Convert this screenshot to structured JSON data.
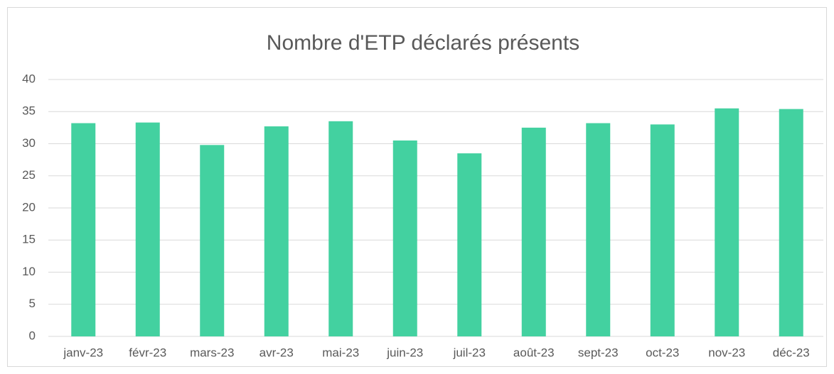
{
  "chart_data": {
    "type": "bar",
    "title": "Nombre d'ETP déclarés présents",
    "categories": [
      "janv-23",
      "févr-23",
      "mars-23",
      "avr-23",
      "mai-23",
      "juin-23",
      "juil-23",
      "août-23",
      "sept-23",
      "oct-23",
      "nov-23",
      "déc-23"
    ],
    "values": [
      33.2,
      33.3,
      29.8,
      32.7,
      33.5,
      30.5,
      28.5,
      32.5,
      33.2,
      33.0,
      35.5,
      35.4
    ],
    "color": "#43d1a0",
    "ylim": [
      0,
      40
    ],
    "yticks": [
      0,
      5,
      10,
      15,
      20,
      25,
      30,
      35,
      40
    ],
    "grid": true
  }
}
